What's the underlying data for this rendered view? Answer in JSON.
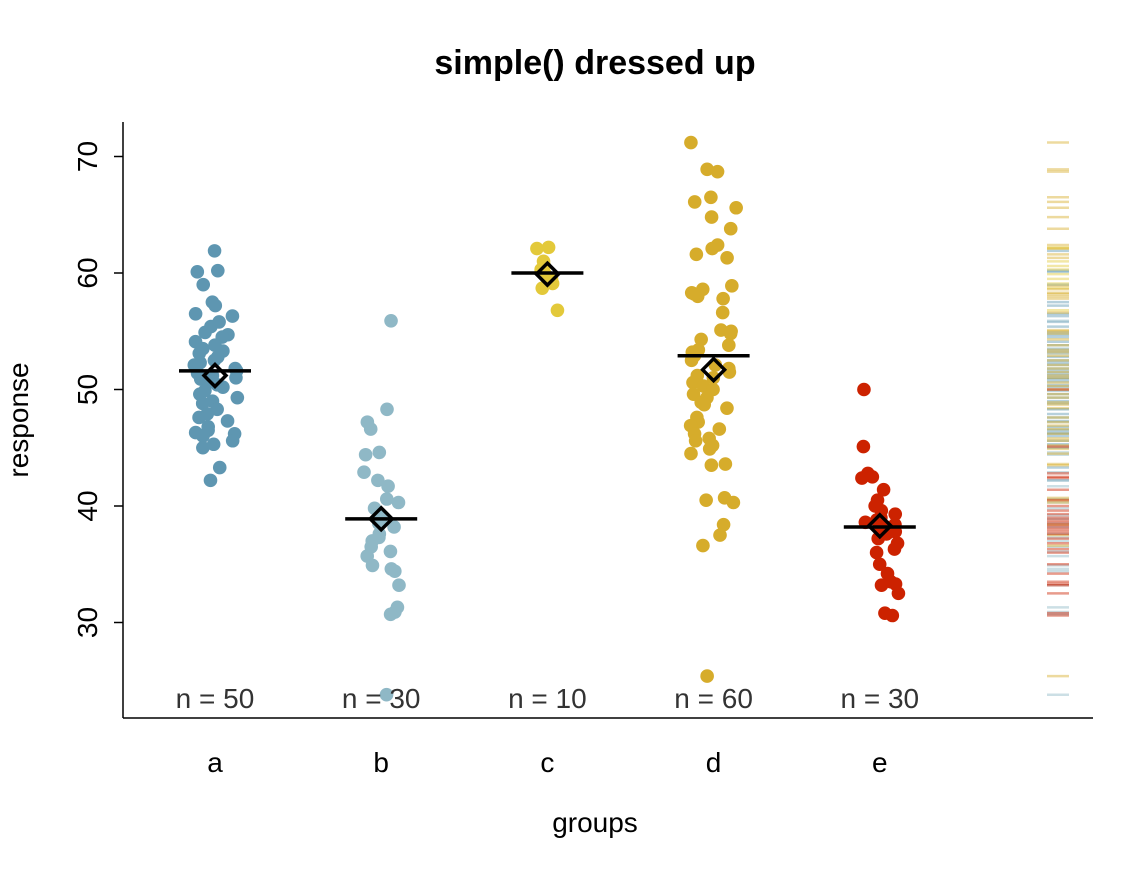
{
  "chart_data": {
    "type": "scatter",
    "title": "simple() dressed up",
    "xlabel": "groups",
    "ylabel": "response",
    "ylim": [
      22,
      73
    ],
    "yticks": [
      30,
      40,
      50,
      60,
      70
    ],
    "categories": [
      "a",
      "b",
      "c",
      "d",
      "e"
    ],
    "counts": [
      "n = 50",
      "n = 30",
      "n = 10",
      "n = 60",
      "n = 30"
    ],
    "colors": {
      "a": "#5e96b1",
      "b": "#8fb8c6",
      "c": "#e3c93a",
      "d": "#d6ac2b",
      "e": "#cc2200"
    },
    "legend": "none",
    "grid": false,
    "rug": "right side, one tick per point, colored by group",
    "groups": [
      {
        "name": "a",
        "median": 51.6,
        "mean": 51.2,
        "values": [
          61.9,
          60.2,
          60.1,
          59.0,
          57.5,
          57.2,
          56.5,
          56.3,
          55.8,
          55.4,
          54.9,
          54.7,
          54.5,
          54.1,
          53.8,
          53.5,
          53.3,
          53.1,
          52.8,
          52.5,
          52.3,
          52.1,
          51.8,
          51.6,
          51.4,
          51.2,
          51.0,
          50.9,
          50.7,
          50.4,
          50.2,
          49.9,
          49.6,
          49.3,
          49.0,
          48.8,
          48.3,
          47.9,
          47.6,
          47.3,
          46.8,
          46.5,
          46.3,
          46.2,
          46.0,
          45.6,
          45.3,
          45.0,
          43.3,
          42.2
        ]
      },
      {
        "name": "b",
        "median": 38.9,
        "mean": 38.9,
        "values": [
          55.9,
          48.3,
          47.2,
          46.6,
          44.6,
          44.4,
          42.9,
          42.2,
          41.7,
          40.6,
          40.3,
          39.8,
          39.2,
          38.9,
          38.5,
          38.2,
          37.6,
          37.3,
          37.0,
          36.5,
          36.1,
          35.7,
          34.9,
          34.6,
          34.4,
          33.2,
          31.3,
          30.9,
          30.7,
          23.8
        ]
      },
      {
        "name": "c",
        "median": 60.0,
        "mean": 59.9,
        "values": [
          62.2,
          62.1,
          61.0,
          60.6,
          60.3,
          59.9,
          59.5,
          59.1,
          58.7,
          56.8
        ]
      },
      {
        "name": "d",
        "median": 52.9,
        "mean": 51.7,
        "values": [
          71.2,
          68.9,
          68.7,
          66.5,
          66.1,
          65.6,
          64.8,
          63.8,
          62.4,
          62.1,
          61.6,
          61.3,
          58.9,
          58.6,
          58.3,
          58.0,
          57.8,
          56.6,
          55.1,
          54.8,
          54.3,
          53.8,
          53.4,
          53.2,
          52.9,
          52.5,
          52.1,
          51.8,
          51.5,
          51.2,
          51.0,
          50.6,
          50.3,
          50.0,
          49.6,
          49.3,
          48.9,
          48.7,
          48.4,
          47.6,
          47.2,
          46.9,
          46.6,
          46.2,
          45.8,
          45.6,
          45.2,
          44.9,
          44.5,
          43.6,
          43.5,
          40.7,
          40.5,
          40.3,
          38.4,
          37.5,
          36.6,
          25.4,
          58.2,
          55.0
        ]
      },
      {
        "name": "e",
        "median": 38.2,
        "mean": 38.3,
        "values": [
          50.0,
          45.1,
          42.8,
          42.5,
          42.4,
          41.4,
          40.5,
          40.0,
          39.6,
          39.3,
          39.0,
          38.8,
          38.6,
          38.4,
          38.2,
          38.0,
          37.8,
          37.6,
          37.2,
          36.8,
          36.3,
          36.0,
          35.0,
          34.2,
          33.5,
          33.3,
          33.2,
          32.5,
          30.8,
          30.6
        ]
      }
    ]
  }
}
